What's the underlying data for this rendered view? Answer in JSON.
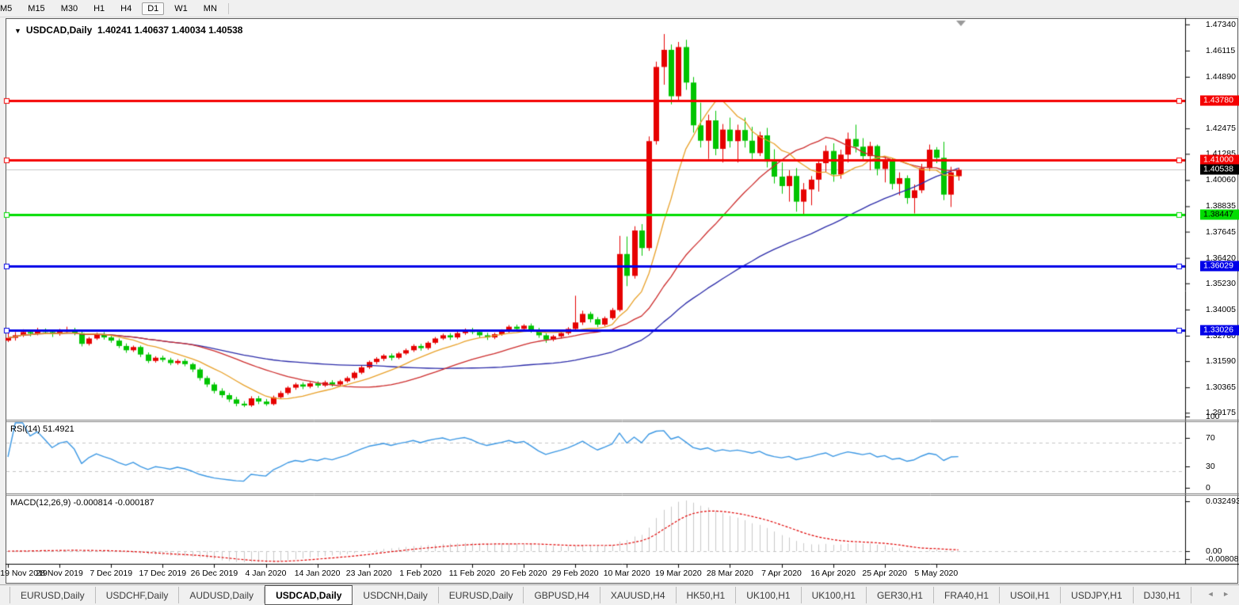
{
  "toolbar": {
    "timeframes": [
      {
        "label": "M5",
        "selected": false
      },
      {
        "label": "M15",
        "selected": false
      },
      {
        "label": "M30",
        "selected": false
      },
      {
        "label": "H1",
        "selected": false
      },
      {
        "label": "H4",
        "selected": false
      },
      {
        "label": "D1",
        "selected": true
      },
      {
        "label": "W1",
        "selected": false
      },
      {
        "label": "MN",
        "selected": false
      }
    ]
  },
  "title": {
    "symbol": "USDCAD,Daily",
    "ohlc": "1.40241 1.40637 1.40034 1.40538"
  },
  "rsi_panel": {
    "label": "RSI(14) 51.4921",
    "levels": [
      100,
      70,
      30,
      0
    ],
    "dashed_levels": [
      70,
      30
    ]
  },
  "macd_panel": {
    "label": "MACD(12,26,9) -0.000814 -0.000187",
    "axis_labels": [
      {
        "text": "0.032493",
        "value": 0.032493
      },
      {
        "text": "0.00",
        "value": 0.0
      },
      {
        "text": "-0.008086",
        "value": -0.008086
      }
    ]
  },
  "price_axis": {
    "ticks": [
      {
        "label": "1.47340",
        "price": 1.4734
      },
      {
        "label": "1.46115",
        "price": 1.46115
      },
      {
        "label": "1.44890",
        "price": 1.4489
      },
      {
        "label": "1.42475",
        "price": 1.42475
      },
      {
        "label": "1.41285",
        "price": 1.41285
      },
      {
        "label": "1.40060",
        "price": 1.4006
      },
      {
        "label": "1.38835",
        "price": 1.38835
      },
      {
        "label": "1.37645",
        "price": 1.37645
      },
      {
        "label": "1.36420",
        "price": 1.3642
      },
      {
        "label": "1.35230",
        "price": 1.3523
      },
      {
        "label": "1.34005",
        "price": 1.34005
      },
      {
        "label": "1.32780",
        "price": 1.3278
      },
      {
        "label": "1.31590",
        "price": 1.3159
      },
      {
        "label": "1.30365",
        "price": 1.30365
      },
      {
        "label": "1.29175",
        "price": 1.29175
      }
    ],
    "current_price": {
      "label": "1.40538",
      "price": 1.40538,
      "bg": "#000000",
      "fg": "#ffffff"
    }
  },
  "hlines": [
    {
      "label": "1.43780",
      "price": 1.4378,
      "color": "#f40000",
      "text": "#ffffff",
      "width": 3
    },
    {
      "label": "1.41000",
      "price": 1.41,
      "color": "#f40000",
      "text": "#ffffff",
      "width": 3
    },
    {
      "label": "1.38447",
      "price": 1.38447,
      "color": "#00dd00",
      "text": "#000000",
      "width": 3
    },
    {
      "label": "1.36029",
      "price": 1.36029,
      "color": "#0000e8",
      "text": "#ffffff",
      "width": 3
    },
    {
      "label": "1.33026",
      "price": 1.33026,
      "color": "#0000e8",
      "text": "#ffffff",
      "width": 3
    }
  ],
  "date_axis": {
    "labels": [
      "19 Nov 2019",
      "28 Nov 2019",
      "7 Dec 2019",
      "17 Dec 2019",
      "26 Dec 2019",
      "4 Jan 2020",
      "14 Jan 2020",
      "23 Jan 2020",
      "1 Feb 2020",
      "11 Feb 2020",
      "20 Feb 2020",
      "29 Feb 2020",
      "10 Mar 2020",
      "19 Mar 2020",
      "28 Mar 2020",
      "7 Apr 2020",
      "16 Apr 2020",
      "25 Apr 2020",
      "5 May 2020"
    ],
    "candle_step": 7
  },
  "chart_data": {
    "type": "candlestick",
    "symbol": "USDCAD",
    "timeframe": "Daily",
    "current_bar": {
      "open": 1.40241,
      "high": 1.40637,
      "low": 1.40034,
      "close": 1.40538
    },
    "ylim": [
      1.29175,
      1.4734
    ],
    "note_colors": "bullish candles are red, bearish candles are green (inverted palette)",
    "candles": [
      [
        1.3255,
        1.3292,
        1.3248,
        1.3268
      ],
      [
        1.3268,
        1.3295,
        1.3255,
        1.328
      ],
      [
        1.328,
        1.3308,
        1.3272,
        1.3295
      ],
      [
        1.3295,
        1.3305,
        1.3275,
        1.3288
      ],
      [
        1.3288,
        1.3315,
        1.328,
        1.3302
      ],
      [
        1.3302,
        1.3312,
        1.3285,
        1.3295
      ],
      [
        1.3295,
        1.3305,
        1.3272,
        1.3285
      ],
      [
        1.3285,
        1.331,
        1.3278,
        1.3298
      ],
      [
        1.3298,
        1.332,
        1.3288,
        1.3305
      ],
      [
        1.3305,
        1.3315,
        1.328,
        1.329
      ],
      [
        1.329,
        1.3298,
        1.3228,
        1.324
      ],
      [
        1.324,
        1.3272,
        1.3232,
        1.3265
      ],
      [
        1.3265,
        1.3292,
        1.3258,
        1.3285
      ],
      [
        1.3285,
        1.3295,
        1.326,
        1.327
      ],
      [
        1.327,
        1.3282,
        1.3245,
        1.3255
      ],
      [
        1.3255,
        1.3265,
        1.322,
        1.323
      ],
      [
        1.323,
        1.3242,
        1.3198,
        1.321
      ],
      [
        1.321,
        1.3232,
        1.3202,
        1.3225
      ],
      [
        1.3225,
        1.3232,
        1.3178,
        1.319
      ],
      [
        1.319,
        1.32,
        1.315,
        1.316
      ],
      [
        1.316,
        1.3182,
        1.3152,
        1.3175
      ],
      [
        1.3175,
        1.3185,
        1.3155,
        1.3165
      ],
      [
        1.3165,
        1.3175,
        1.314,
        1.315
      ],
      [
        1.315,
        1.3168,
        1.3142,
        1.316
      ],
      [
        1.316,
        1.317,
        1.3135,
        1.3145
      ],
      [
        1.3145,
        1.3152,
        1.3108,
        1.312
      ],
      [
        1.312,
        1.3128,
        1.3068,
        1.308
      ],
      [
        1.308,
        1.309,
        1.3038,
        1.305
      ],
      [
        1.305,
        1.306,
        1.3008,
        1.302
      ],
      [
        1.302,
        1.3032,
        1.2988,
        1.3
      ],
      [
        1.3,
        1.301,
        1.2968,
        1.298
      ],
      [
        1.298,
        1.2992,
        1.2948,
        1.296
      ],
      [
        1.296,
        1.2972,
        1.2944,
        1.2952
      ],
      [
        1.2952,
        1.2995,
        1.2945,
        1.2985
      ],
      [
        1.2985,
        1.2996,
        1.2958,
        1.297
      ],
      [
        1.297,
        1.2982,
        1.295,
        1.2958
      ],
      [
        1.2958,
        1.2998,
        1.2952,
        1.299
      ],
      [
        1.299,
        1.302,
        1.2982,
        1.301
      ],
      [
        1.301,
        1.3042,
        1.3002,
        1.3035
      ],
      [
        1.3035,
        1.3058,
        1.3025,
        1.305
      ],
      [
        1.305,
        1.306,
        1.3028,
        1.304
      ],
      [
        1.304,
        1.3062,
        1.3032,
        1.3055
      ],
      [
        1.3055,
        1.3065,
        1.3035,
        1.3045
      ],
      [
        1.3045,
        1.3068,
        1.3038,
        1.306
      ],
      [
        1.306,
        1.307,
        1.304,
        1.305
      ],
      [
        1.305,
        1.3072,
        1.3042,
        1.3065
      ],
      [
        1.3065,
        1.3088,
        1.3058,
        1.308
      ],
      [
        1.308,
        1.3112,
        1.3072,
        1.3105
      ],
      [
        1.3105,
        1.3138,
        1.3098,
        1.313
      ],
      [
        1.313,
        1.3162,
        1.3122,
        1.3155
      ],
      [
        1.3155,
        1.3178,
        1.3145,
        1.317
      ],
      [
        1.317,
        1.3192,
        1.316,
        1.3185
      ],
      [
        1.3185,
        1.3195,
        1.3162,
        1.3175
      ],
      [
        1.3175,
        1.3202,
        1.3168,
        1.3195
      ],
      [
        1.3195,
        1.3218,
        1.3188,
        1.321
      ],
      [
        1.321,
        1.3238,
        1.3202,
        1.323
      ],
      [
        1.323,
        1.324,
        1.3208,
        1.322
      ],
      [
        1.322,
        1.3252,
        1.3212,
        1.3245
      ],
      [
        1.3245,
        1.3272,
        1.3238,
        1.3265
      ],
      [
        1.3265,
        1.3288,
        1.3258,
        1.328
      ],
      [
        1.328,
        1.329,
        1.3258,
        1.327
      ],
      [
        1.327,
        1.3298,
        1.3262,
        1.329
      ],
      [
        1.329,
        1.3312,
        1.3282,
        1.3305
      ],
      [
        1.3305,
        1.3315,
        1.3285,
        1.3295
      ],
      [
        1.3295,
        1.3305,
        1.3268,
        1.328
      ],
      [
        1.328,
        1.3292,
        1.3258,
        1.327
      ],
      [
        1.327,
        1.3292,
        1.3262,
        1.3285
      ],
      [
        1.3285,
        1.3308,
        1.3278,
        1.33
      ],
      [
        1.33,
        1.3328,
        1.3292,
        1.332
      ],
      [
        1.332,
        1.333,
        1.3298,
        1.331
      ],
      [
        1.331,
        1.3332,
        1.3302,
        1.3325
      ],
      [
        1.3325,
        1.3335,
        1.3292,
        1.3305
      ],
      [
        1.3305,
        1.3315,
        1.3268,
        1.328
      ],
      [
        1.328,
        1.329,
        1.3245,
        1.326
      ],
      [
        1.326,
        1.3282,
        1.3252,
        1.3275
      ],
      [
        1.3275,
        1.3298,
        1.3265,
        1.329
      ],
      [
        1.329,
        1.3318,
        1.3282,
        1.331
      ],
      [
        1.331,
        1.3465,
        1.3302,
        1.334
      ],
      [
        1.334,
        1.3395,
        1.3328,
        1.338
      ],
      [
        1.338,
        1.339,
        1.334,
        1.3355
      ],
      [
        1.3355,
        1.3365,
        1.3318,
        1.333
      ],
      [
        1.333,
        1.3368,
        1.3322,
        1.336
      ],
      [
        1.336,
        1.3408,
        1.3352,
        1.3398
      ],
      [
        1.3398,
        1.3745,
        1.339,
        1.366
      ],
      [
        1.366,
        1.3742,
        1.351,
        1.3558
      ],
      [
        1.3558,
        1.379,
        1.3545,
        1.377
      ],
      [
        1.377,
        1.38,
        1.3652,
        1.3688
      ],
      [
        1.3688,
        1.421,
        1.3675,
        1.4188
      ],
      [
        1.4188,
        1.456,
        1.4172,
        1.4535
      ],
      [
        1.4535,
        1.4689,
        1.4452,
        1.4615
      ],
      [
        1.4615,
        1.464,
        1.436,
        1.4398
      ],
      [
        1.4398,
        1.4652,
        1.438,
        1.4628
      ],
      [
        1.4628,
        1.4662,
        1.4428,
        1.4462
      ],
      [
        1.4462,
        1.4488,
        1.4228,
        1.4262
      ],
      [
        1.4262,
        1.4368,
        1.4158,
        1.419
      ],
      [
        1.419,
        1.4312,
        1.4105,
        1.4285
      ],
      [
        1.4285,
        1.433,
        1.4122,
        1.4152
      ],
      [
        1.4152,
        1.4268,
        1.4088,
        1.4242
      ],
      [
        1.4242,
        1.4298,
        1.4158,
        1.4188
      ],
      [
        1.4188,
        1.4265,
        1.4088,
        1.424
      ],
      [
        1.424,
        1.4298,
        1.4158,
        1.419
      ],
      [
        1.419,
        1.4255,
        1.4105,
        1.4132
      ],
      [
        1.4132,
        1.4232,
        1.4118,
        1.4215
      ],
      [
        1.4215,
        1.425,
        1.4065,
        1.4092
      ],
      [
        1.4092,
        1.415,
        1.399,
        1.4022
      ],
      [
        1.4022,
        1.4088,
        1.3942,
        1.3978
      ],
      [
        1.3978,
        1.4052,
        1.3905,
        1.4025
      ],
      [
        1.4025,
        1.4062,
        1.3858,
        1.3905
      ],
      [
        1.3905,
        1.3992,
        1.3842,
        1.3962
      ],
      [
        1.3962,
        1.4025,
        1.3888,
        1.4008
      ],
      [
        1.4008,
        1.4102,
        1.3952,
        1.4085
      ],
      [
        1.4085,
        1.4168,
        1.4042,
        1.4142
      ],
      [
        1.4142,
        1.4178,
        1.3998,
        1.4032
      ],
      [
        1.4032,
        1.4148,
        1.4012,
        1.4125
      ],
      [
        1.4125,
        1.4228,
        1.4088,
        1.4198
      ],
      [
        1.4198,
        1.4265,
        1.4135,
        1.4162
      ],
      [
        1.4162,
        1.4202,
        1.4095,
        1.4118
      ],
      [
        1.4118,
        1.4185,
        1.4052,
        1.4165
      ],
      [
        1.4165,
        1.4172,
        1.4028,
        1.4058
      ],
      [
        1.4058,
        1.4118,
        1.3995,
        1.4098
      ],
      [
        1.4098,
        1.4108,
        1.3962,
        1.3988
      ],
      [
        1.3988,
        1.4042,
        1.3935,
        1.4015
      ],
      [
        1.4015,
        1.4028,
        1.3895,
        1.3922
      ],
      [
        1.3922,
        1.3985,
        1.385,
        1.3958
      ],
      [
        1.3958,
        1.4082,
        1.3945,
        1.4062
      ],
      [
        1.4062,
        1.4172,
        1.4048,
        1.4148
      ],
      [
        1.4148,
        1.416,
        1.4085,
        1.411
      ],
      [
        1.411,
        1.4185,
        1.3912,
        1.3938
      ],
      [
        1.3938,
        1.4068,
        1.388,
        1.4042
      ],
      [
        1.40241,
        1.40637,
        1.40034,
        1.40538
      ]
    ],
    "moving_averages": [
      {
        "period": 10,
        "color": "#e8a028"
      },
      {
        "period": 25,
        "color": "#cc2a2a"
      },
      {
        "period": 50,
        "color": "#2a2aa8"
      }
    ],
    "rsi": {
      "period": 14,
      "value": 51.4921,
      "color": "#3b97e3",
      "levels": [
        70,
        30
      ]
    },
    "macd": {
      "fast": 12,
      "slow": 26,
      "signal": 9,
      "value": -0.000814,
      "signal_value": -0.000187,
      "histogram_color": "#c8c8c8",
      "signal_color": "#e00000",
      "ymax": 0.032493,
      "ymin": -0.008086
    }
  },
  "colors": {
    "bull_candle": "#e60000",
    "bear_candle": "#00c400",
    "current_price_line": "#c4c4c4",
    "panel_border": "#808080",
    "shift_marker": "#9a9a9a"
  },
  "tabs": {
    "items": [
      "EURUSD,Daily",
      "USDCHF,Daily",
      "AUDUSD,Daily",
      "USDCAD,Daily",
      "USDCNH,Daily",
      "EURUSD,Daily",
      "GBPUSD,H4",
      "XAUUSD,H4",
      "HK50,H1",
      "UK100,H1",
      "UK100,H1",
      "GER30,H1",
      "FRA40,H1",
      "USOil,H1",
      "USDJPY,H1",
      "DJ30,H1"
    ],
    "selected_index": 3,
    "scroll_arrows": "◄ ►"
  }
}
